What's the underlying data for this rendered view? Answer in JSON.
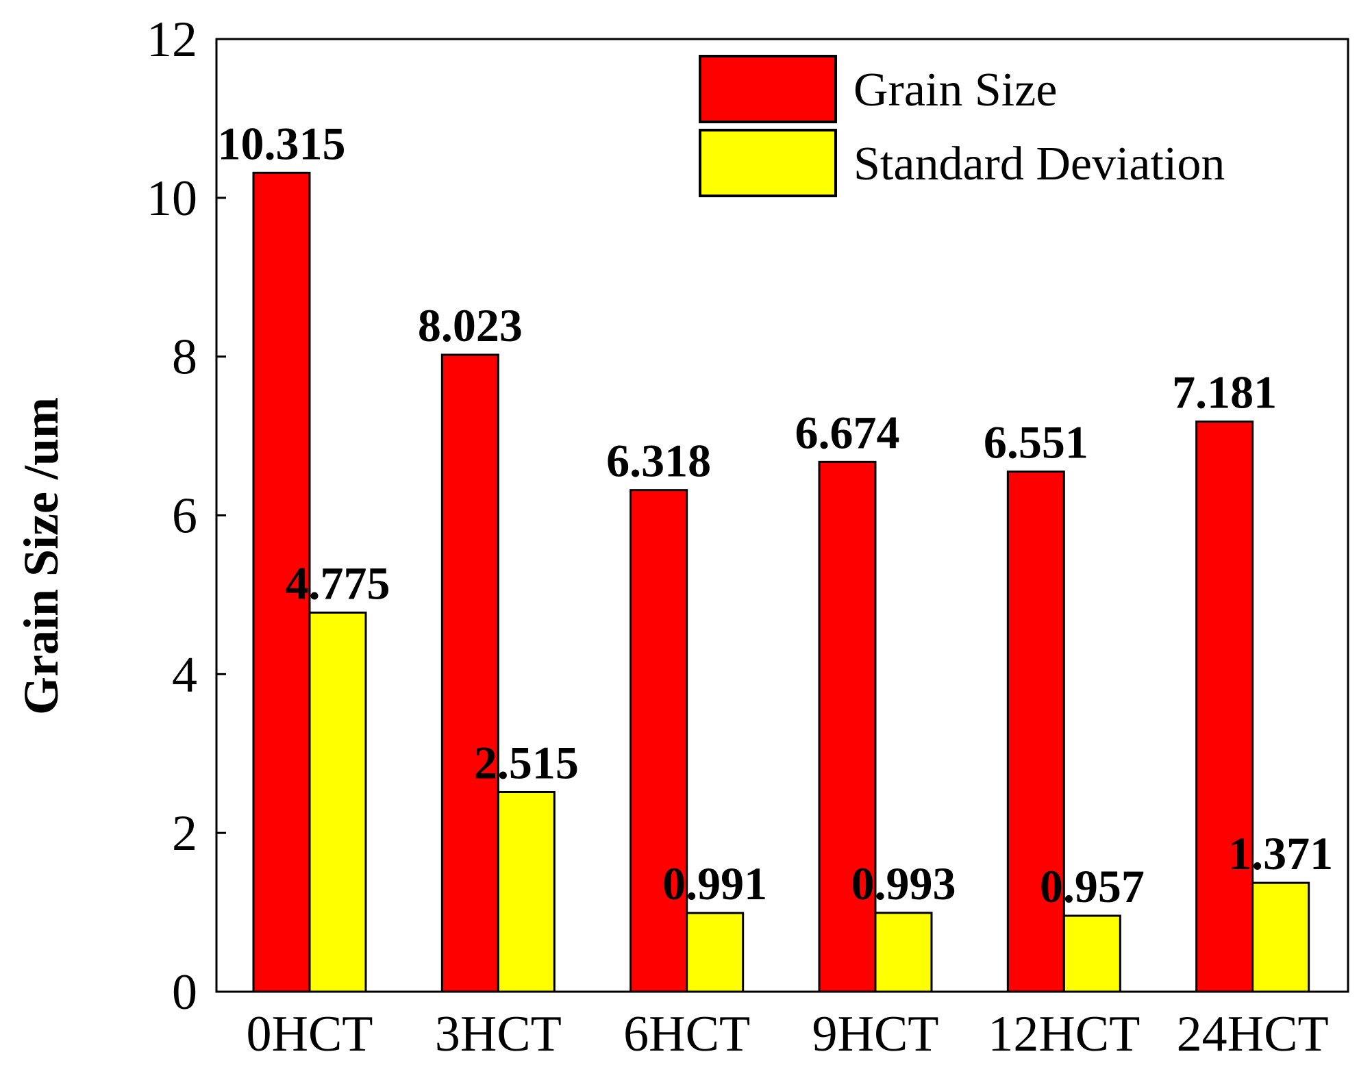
{
  "chart_data": {
    "type": "bar",
    "title": "",
    "xlabel": "",
    "ylabel": "Grain Size /um",
    "ylim": [
      0,
      12
    ],
    "yticks": [
      0,
      2,
      4,
      6,
      8,
      10,
      12
    ],
    "categories": [
      "0HCT",
      "3HCT",
      "6HCT",
      "9HCT",
      "12HCT",
      "24HCT"
    ],
    "series": [
      {
        "name": "Grain Size",
        "color": "#ff0000",
        "values": [
          10.315,
          8.023,
          6.318,
          6.674,
          6.551,
          7.181
        ],
        "labels": [
          "10.315",
          "8.023",
          "6.318",
          "6.674",
          "6.551",
          "7.181"
        ]
      },
      {
        "name": "Standard Deviation",
        "color": "#ffff00",
        "values": [
          4.775,
          2.515,
          0.991,
          0.993,
          0.957,
          1.371
        ],
        "labels": [
          "4.775",
          "2.515",
          "0.991",
          "0.993",
          "0.957",
          "1.371"
        ]
      }
    ],
    "legend": "top-right",
    "grid": false
  }
}
